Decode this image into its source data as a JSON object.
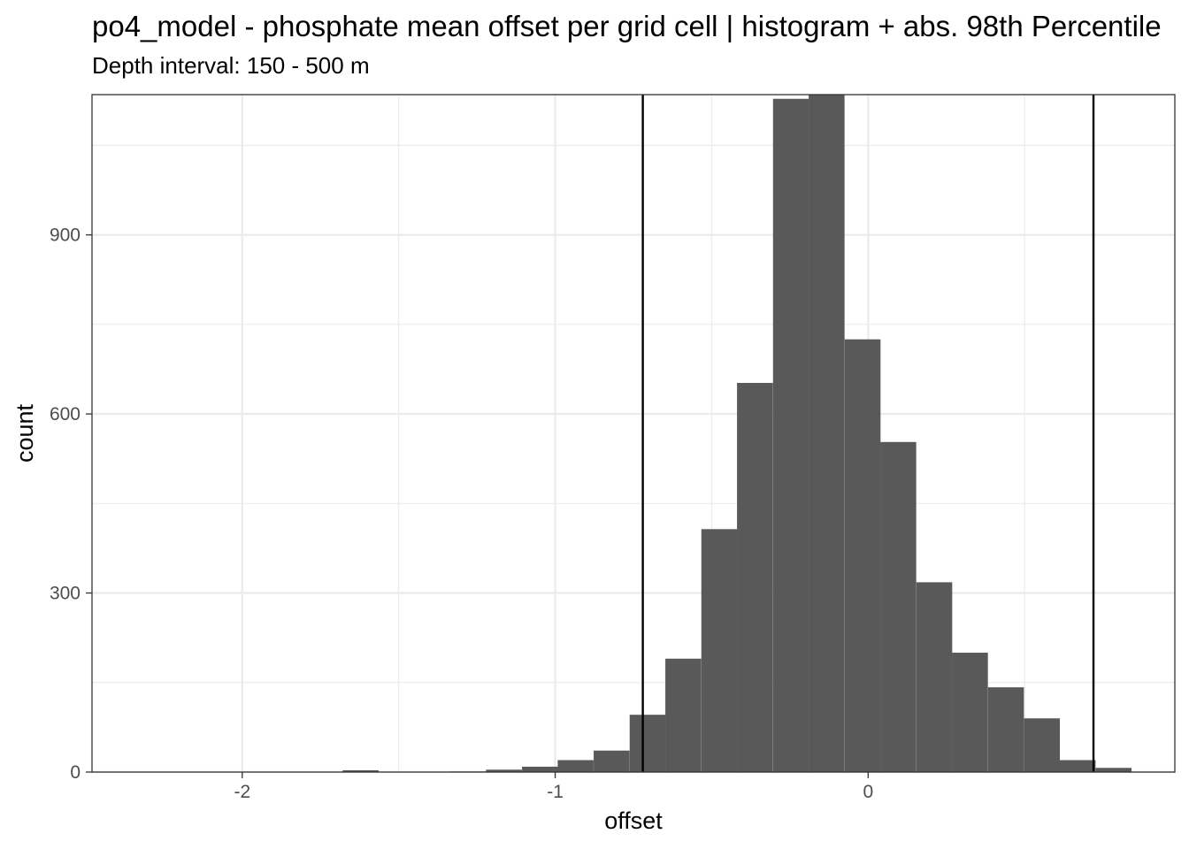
{
  "chart_data": {
    "type": "bar",
    "title": "po4_model  -  phosphate mean offset per grid cell | histogram + abs. 98th Percentile",
    "subtitle": "Depth interval: 150 - 500 m",
    "xlabel": "offset",
    "ylabel": "count",
    "xlim": [
      -2.48,
      0.98
    ],
    "ylim": [
      0,
      1135
    ],
    "x_ticks": [
      -2,
      -1,
      0
    ],
    "x_tick_labels": [
      "-2",
      "-1",
      "0"
    ],
    "y_ticks": [
      0,
      300,
      600,
      900
    ],
    "y_tick_labels": [
      "0",
      "300",
      "600",
      "900"
    ],
    "grid": true,
    "bin_width": 0.1146,
    "bins": [
      {
        "start": -2.481,
        "count": 0
      },
      {
        "start": -2.366,
        "count": 0
      },
      {
        "start": -2.252,
        "count": 0
      },
      {
        "start": -2.137,
        "count": 0
      },
      {
        "start": -2.022,
        "count": 0
      },
      {
        "start": -1.908,
        "count": 0
      },
      {
        "start": -1.793,
        "count": 0
      },
      {
        "start": -1.679,
        "count": 3
      },
      {
        "start": -1.564,
        "count": 0
      },
      {
        "start": -1.45,
        "count": 0
      },
      {
        "start": -1.335,
        "count": 1
      },
      {
        "start": -1.221,
        "count": 4
      },
      {
        "start": -1.106,
        "count": 9
      },
      {
        "start": -0.992,
        "count": 20
      },
      {
        "start": -0.877,
        "count": 36
      },
      {
        "start": -0.762,
        "count": 96
      },
      {
        "start": -0.648,
        "count": 190
      },
      {
        "start": -0.533,
        "count": 407
      },
      {
        "start": -0.419,
        "count": 652
      },
      {
        "start": -0.304,
        "count": 1128
      },
      {
        "start": -0.19,
        "count": 1135
      },
      {
        "start": -0.075,
        "count": 725
      },
      {
        "start": 0.039,
        "count": 553
      },
      {
        "start": 0.154,
        "count": 318
      },
      {
        "start": 0.268,
        "count": 200
      },
      {
        "start": 0.383,
        "count": 142
      },
      {
        "start": 0.498,
        "count": 90
      },
      {
        "start": 0.612,
        "count": 20
      },
      {
        "start": 0.727,
        "count": 7
      }
    ],
    "percentile_lines": [
      -0.72,
      0.72
    ]
  }
}
